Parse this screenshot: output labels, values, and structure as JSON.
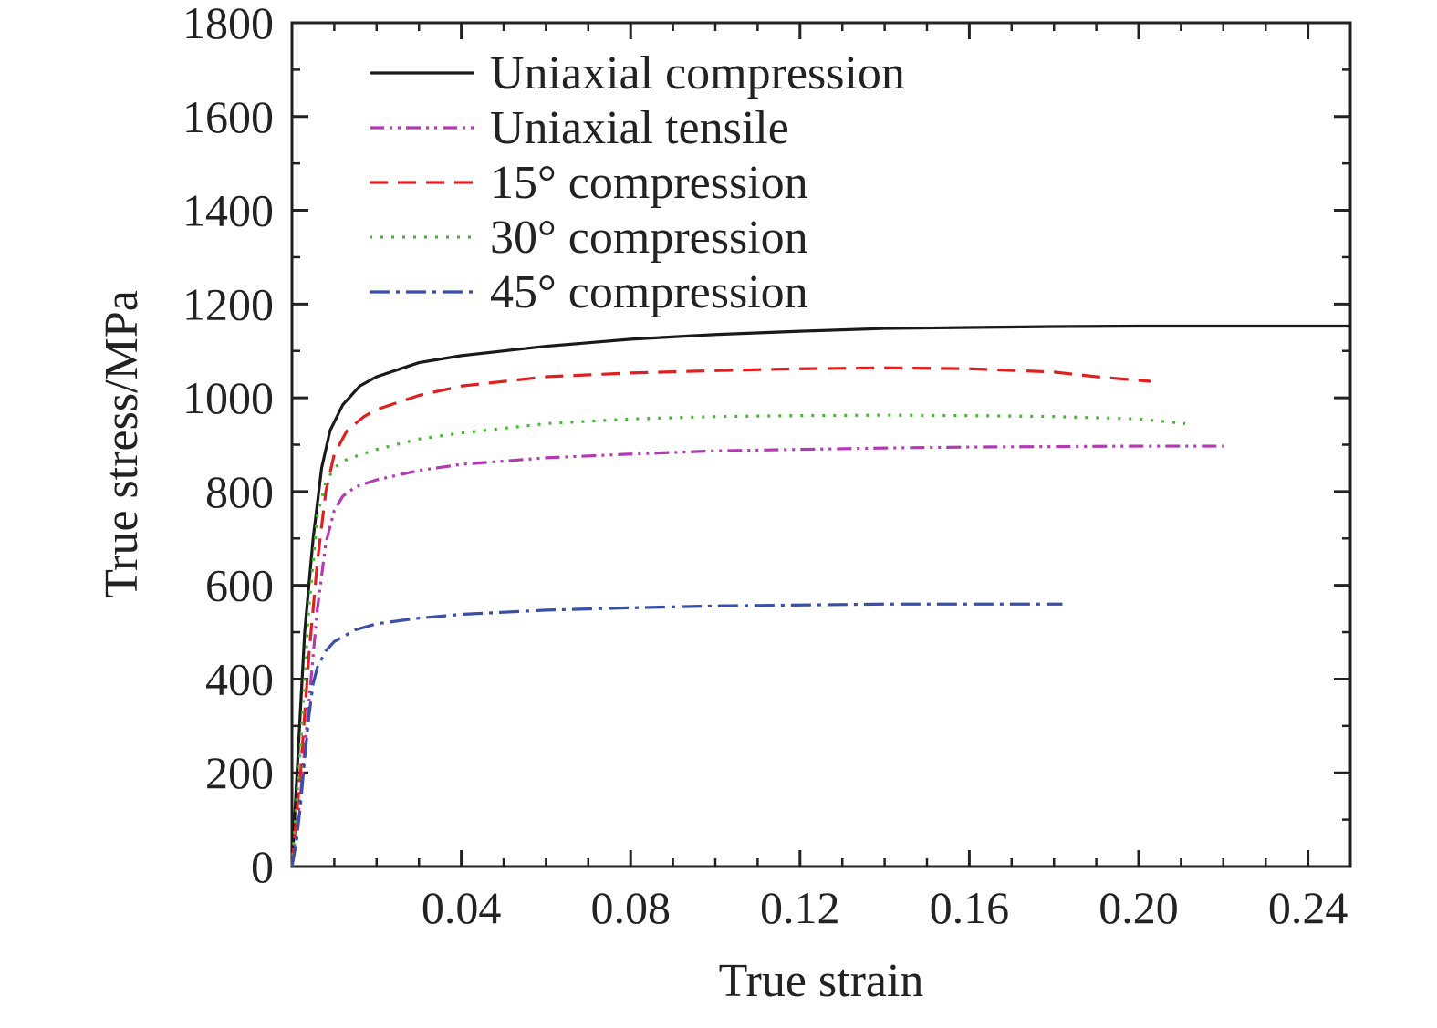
{
  "chart_data": {
    "type": "line",
    "title": "",
    "xlabel": "True strain",
    "ylabel": "True stress/MPa",
    "xlim": [
      0,
      0.25
    ],
    "ylim": [
      0,
      1800
    ],
    "x_ticks": [
      {
        "value": 0.04,
        "label": "0.04"
      },
      {
        "value": 0.08,
        "label": "0.08"
      },
      {
        "value": 0.12,
        "label": "0.12"
      },
      {
        "value": 0.16,
        "label": "0.16"
      },
      {
        "value": 0.2,
        "label": "0.20"
      },
      {
        "value": 0.24,
        "label": "0.24"
      }
    ],
    "y_ticks": [
      {
        "value": 0,
        "label": "0"
      },
      {
        "value": 200,
        "label": "200"
      },
      {
        "value": 400,
        "label": "400"
      },
      {
        "value": 600,
        "label": "600"
      },
      {
        "value": 800,
        "label": "800"
      },
      {
        "value": 1000,
        "label": "1000"
      },
      {
        "value": 1200,
        "label": "1200"
      },
      {
        "value": 1400,
        "label": "1400"
      },
      {
        "value": 1600,
        "label": "1600"
      },
      {
        "value": 1800,
        "label": "1800"
      }
    ],
    "grid": false,
    "legend_position": "top-left",
    "series": [
      {
        "name": "Uniaxial compression",
        "color": "#1a1a1a",
        "dash": "solid",
        "x": [
          0,
          0.0015,
          0.003,
          0.005,
          0.007,
          0.009,
          0.012,
          0.016,
          0.02,
          0.03,
          0.04,
          0.06,
          0.08,
          0.1,
          0.12,
          0.14,
          0.16,
          0.18,
          0.2,
          0.22,
          0.25
        ],
        "y": [
          0,
          250,
          500,
          700,
          850,
          930,
          985,
          1025,
          1045,
          1075,
          1090,
          1110,
          1125,
          1135,
          1142,
          1148,
          1150,
          1152,
          1153,
          1153,
          1153
        ]
      },
      {
        "name": "Uniaxial tensile",
        "color": "#b23ab2",
        "dash": "dash-dot-dot",
        "x": [
          0,
          0.002,
          0.004,
          0.006,
          0.008,
          0.01,
          0.012,
          0.015,
          0.02,
          0.03,
          0.04,
          0.06,
          0.08,
          0.1,
          0.12,
          0.14,
          0.16,
          0.18,
          0.2,
          0.22
        ],
        "y": [
          0,
          150,
          350,
          550,
          690,
          760,
          790,
          810,
          825,
          845,
          858,
          872,
          880,
          887,
          890,
          893,
          895,
          896,
          897,
          897
        ]
      },
      {
        "name": "15° compression",
        "color": "#e02020",
        "dash": "dashed",
        "x": [
          0,
          0.002,
          0.004,
          0.006,
          0.008,
          0.01,
          0.013,
          0.017,
          0.02,
          0.03,
          0.04,
          0.06,
          0.08,
          0.1,
          0.12,
          0.14,
          0.16,
          0.18,
          0.19,
          0.203
        ],
        "y": [
          0,
          200,
          450,
          650,
          800,
          880,
          930,
          960,
          975,
          1005,
          1025,
          1045,
          1053,
          1058,
          1062,
          1064,
          1062,
          1055,
          1045,
          1035
        ]
      },
      {
        "name": "30° compression",
        "color": "#44bb2e",
        "dash": "dotted",
        "x": [
          0,
          0.002,
          0.004,
          0.006,
          0.008,
          0.01,
          0.012,
          0.015,
          0.02,
          0.03,
          0.04,
          0.06,
          0.08,
          0.1,
          0.12,
          0.14,
          0.16,
          0.18,
          0.2,
          0.211
        ],
        "y": [
          0,
          250,
          550,
          750,
          820,
          850,
          865,
          875,
          890,
          912,
          925,
          945,
          955,
          960,
          962,
          963,
          962,
          960,
          955,
          945
        ]
      },
      {
        "name": "45° compression",
        "color": "#3a4fa8",
        "dash": "dash-dot",
        "x": [
          0,
          0.001,
          0.002,
          0.003,
          0.004,
          0.005,
          0.006,
          0.008,
          0.01,
          0.015,
          0.02,
          0.03,
          0.04,
          0.06,
          0.08,
          0.1,
          0.12,
          0.14,
          0.16,
          0.182
        ],
        "y": [
          0,
          50,
          130,
          230,
          320,
          390,
          425,
          460,
          480,
          505,
          518,
          530,
          538,
          547,
          552,
          556,
          558,
          560,
          560,
          560
        ]
      }
    ]
  }
}
